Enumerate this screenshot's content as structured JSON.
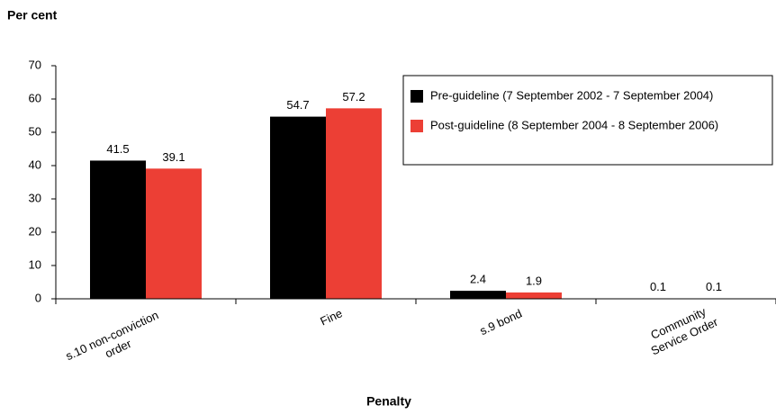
{
  "chart_data": {
    "type": "bar",
    "y_label": "Per cent",
    "x_label": "Penalty",
    "categories": [
      [
        "s.10 non-conviction",
        "order"
      ],
      [
        "Fine"
      ],
      [
        "s.9 bond"
      ],
      [
        "Community",
        "Service Order"
      ]
    ],
    "series": [
      {
        "name": "Pre-guideline (7 September 2002 - 7 September 2004)",
        "color": "#000000",
        "values": [
          41.5,
          54.7,
          2.4,
          0.1
        ]
      },
      {
        "name": "Post-guideline (8 September 2004 - 8 September 2006)",
        "color": "#ec3f35",
        "values": [
          39.1,
          57.2,
          1.9,
          0.1
        ]
      }
    ],
    "ylim": [
      0,
      70
    ],
    "yticks": [
      0,
      10,
      20,
      30,
      40,
      50,
      60,
      70
    ],
    "legend": "upper right"
  }
}
